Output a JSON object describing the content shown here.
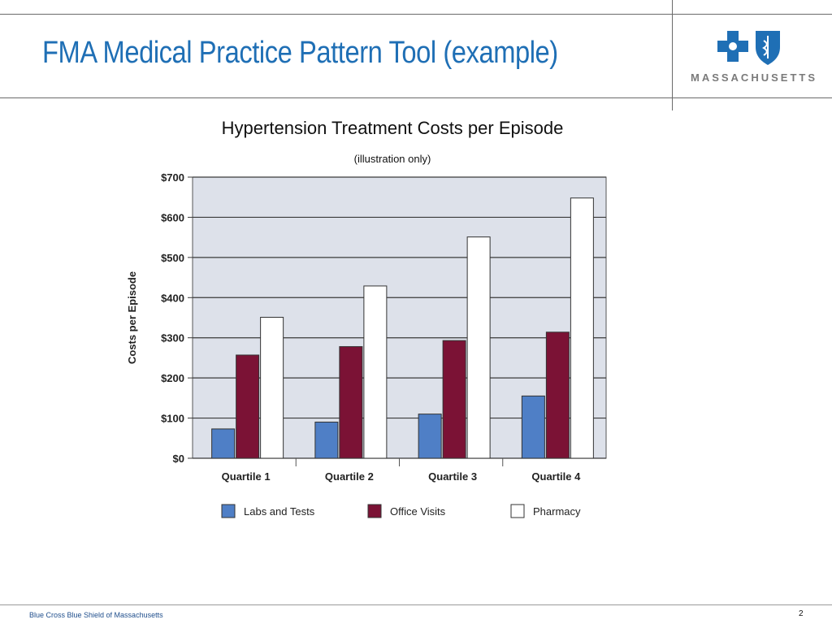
{
  "slide": {
    "title": "FMA Medical Practice Pattern Tool (example)",
    "footer": "Blue Cross Blue Shield of Massachusetts",
    "page_number": "2"
  },
  "logo": {
    "wordmark": "MASSACHUSETTS",
    "icons": [
      "blue-cross-icon",
      "blue-shield-icon"
    ],
    "color": "#1f6fb5"
  },
  "colors": {
    "title": "#1f6fb5",
    "plot_background": "#dde1ea",
    "labs": "#4f7fc6",
    "office": "#7b1235",
    "pharmacy": "#ffffff"
  },
  "chart_data": {
    "type": "bar",
    "title": "Hypertension Treatment Costs per Episode",
    "subtitle": "(illustration only)",
    "ylabel": "Costs per Episode",
    "xlabel": "",
    "categories": [
      "Quartile 1",
      "Quartile 2",
      "Quartile 3",
      "Quartile 4"
    ],
    "series": [
      {
        "name": "Labs and Tests",
        "values": [
          73,
          90,
          110,
          155
        ],
        "color": "#4f7fc6"
      },
      {
        "name": "Office Visits",
        "values": [
          257,
          278,
          293,
          314
        ],
        "color": "#7b1235"
      },
      {
        "name": "Pharmacy",
        "values": [
          351,
          429,
          551,
          648
        ],
        "color": "#ffffff"
      }
    ],
    "ylim": [
      0,
      700
    ],
    "yticks": [
      0,
      100,
      200,
      300,
      400,
      500,
      600,
      700
    ],
    "ytick_labels": [
      "$0",
      "$100",
      "$200",
      "$300",
      "$400",
      "$500",
      "$600",
      "$700"
    ],
    "grid": true,
    "legend_position": "bottom"
  }
}
